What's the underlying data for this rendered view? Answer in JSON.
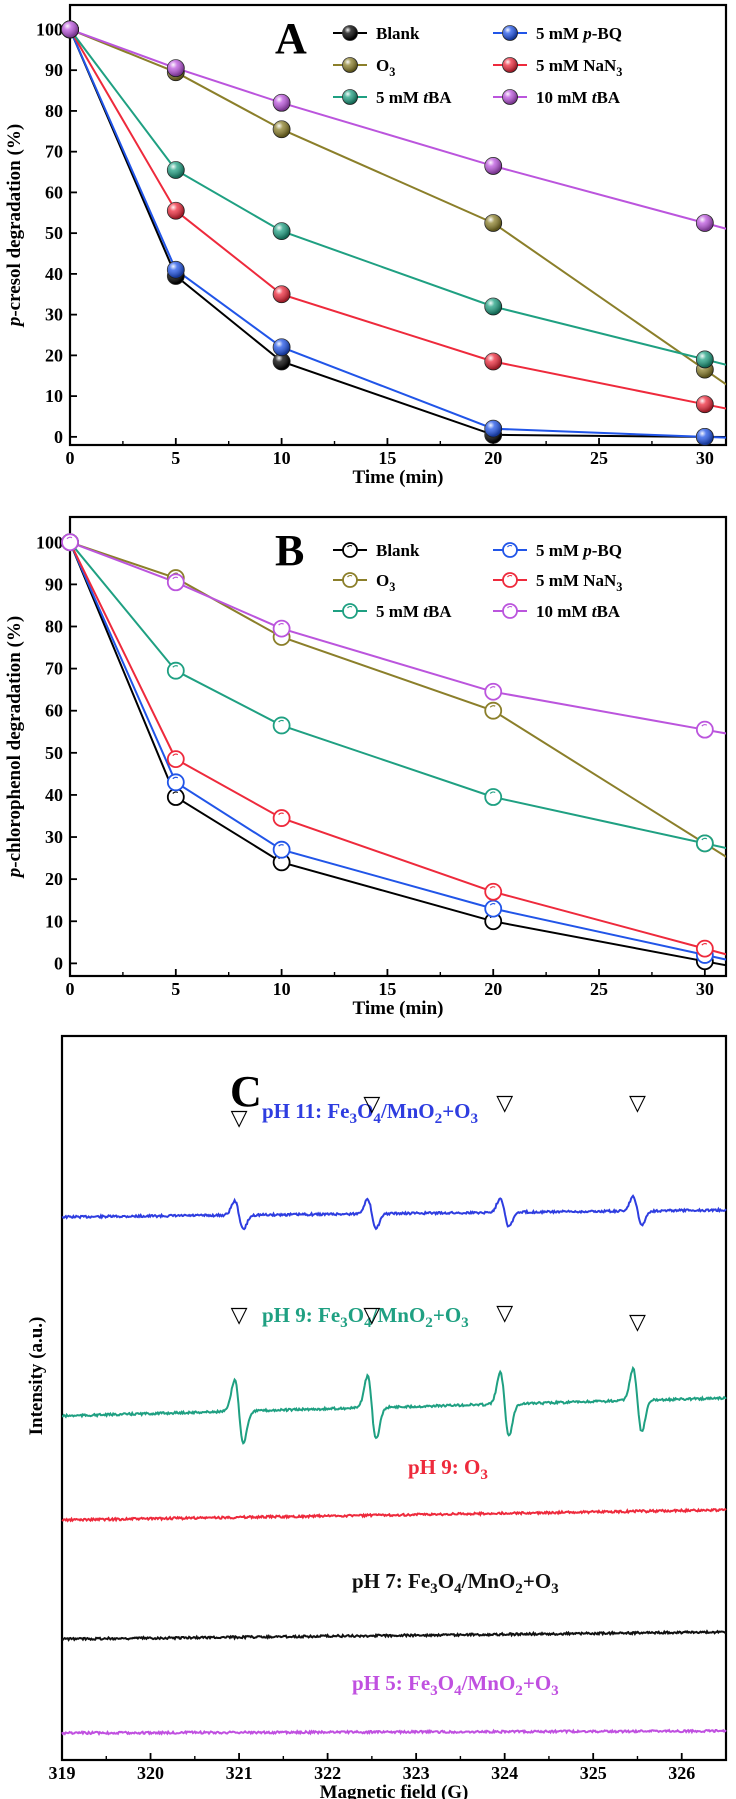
{
  "chart_data": [
    {
      "panel_label": "A",
      "type": "line",
      "marker_style": "filled",
      "xlabel_parts": [
        {
          "t": "Time (min)"
        }
      ],
      "ylabel_parts": [
        {
          "t": "p",
          "i": true
        },
        {
          "t": "-cresol degradation (%)"
        }
      ],
      "xlim": [
        0,
        31
      ],
      "ylim": [
        -2,
        106
      ],
      "xticks": [
        0,
        5,
        10,
        15,
        20,
        25,
        30
      ],
      "yticks": [
        0,
        10,
        20,
        30,
        40,
        50,
        60,
        70,
        80,
        90,
        100
      ],
      "x": [
        0,
        5,
        10,
        20,
        30
      ],
      "series": [
        {
          "key": "blank",
          "name_parts": [
            {
              "t": "Blank"
            }
          ],
          "color": "#000000",
          "values": [
            100,
            39.5,
            18.5,
            0.5,
            0
          ]
        },
        {
          "key": "pbq",
          "name_parts": [
            {
              "t": "5 mM "
            },
            {
              "t": "p",
              "i": true
            },
            {
              "t": "-BQ"
            }
          ],
          "color": "#2155e8",
          "values": [
            100,
            41,
            22,
            2,
            0
          ]
        },
        {
          "key": "o3",
          "name_parts": [
            {
              "t": "O"
            },
            {
              "t": "3",
              "sub": true
            }
          ],
          "color": "#8b7f2a",
          "values": [
            100,
            89.5,
            75.5,
            52.5,
            16.5
          ]
        },
        {
          "key": "nan3",
          "name_parts": [
            {
              "t": "5 mM NaN"
            },
            {
              "t": "3",
              "sub": true
            }
          ],
          "color": "#ee2a3c",
          "values": [
            100,
            55.5,
            35,
            18.5,
            8
          ]
        },
        {
          "key": "tba5",
          "name_parts": [
            {
              "t": "5 mM "
            },
            {
              "t": "t",
              "i": true
            },
            {
              "t": "BA"
            }
          ],
          "color": "#1fa082",
          "values": [
            100,
            65.5,
            50.5,
            32,
            19
          ]
        },
        {
          "key": "tba10",
          "name_parts": [
            {
              "t": "10 mM "
            },
            {
              "t": "t",
              "i": true
            },
            {
              "t": "BA"
            }
          ],
          "color": "#bb55dd",
          "values": [
            100,
            90.5,
            82,
            66.5,
            52.5
          ]
        }
      ],
      "legend": "top-right, two columns",
      "grid": false
    },
    {
      "panel_label": "B",
      "type": "line",
      "marker_style": "open",
      "xlabel_parts": [
        {
          "t": "Time (min)"
        }
      ],
      "ylabel_parts": [
        {
          "t": "p",
          "i": true
        },
        {
          "t": "-chlorophenol degradation (%)"
        }
      ],
      "xlim": [
        0,
        31
      ],
      "ylim": [
        -3,
        106
      ],
      "xticks": [
        0,
        5,
        10,
        15,
        20,
        25,
        30
      ],
      "yticks": [
        0,
        10,
        20,
        30,
        40,
        50,
        60,
        70,
        80,
        90,
        100
      ],
      "x": [
        0,
        5,
        10,
        20,
        30
      ],
      "series": [
        {
          "key": "blank",
          "name_parts": [
            {
              "t": "Blank"
            }
          ],
          "color": "#000000",
          "values": [
            100,
            39.5,
            24,
            10,
            0.5
          ]
        },
        {
          "key": "pbq",
          "name_parts": [
            {
              "t": "5 mM "
            },
            {
              "t": "p",
              "i": true
            },
            {
              "t": "-BQ"
            }
          ],
          "color": "#2155e8",
          "values": [
            100,
            43,
            27,
            13,
            2
          ]
        },
        {
          "key": "o3",
          "name_parts": [
            {
              "t": "O"
            },
            {
              "t": "3",
              "sub": true
            }
          ],
          "color": "#8b7f2a",
          "values": [
            100,
            91.5,
            77.5,
            60,
            28.5
          ]
        },
        {
          "key": "nan3",
          "name_parts": [
            {
              "t": "5 mM NaN"
            },
            {
              "t": "3",
              "sub": true
            }
          ],
          "color": "#ee2a3c",
          "values": [
            100,
            48.5,
            34.5,
            17,
            3.5
          ]
        },
        {
          "key": "tba5",
          "name_parts": [
            {
              "t": "5 mM "
            },
            {
              "t": "t",
              "i": true
            },
            {
              "t": "BA"
            }
          ],
          "color": "#1fa082",
          "values": [
            100,
            69.5,
            56.5,
            39.5,
            28.5
          ]
        },
        {
          "key": "tba10",
          "name_parts": [
            {
              "t": "10 mM "
            },
            {
              "t": "t",
              "i": true
            },
            {
              "t": "BA"
            }
          ],
          "color": "#bb55dd",
          "values": [
            100,
            90.5,
            79.5,
            64.5,
            55.5
          ]
        }
      ],
      "legend": "top-right, two columns",
      "grid": false
    },
    {
      "panel_label": "C",
      "type": "line",
      "xlabel_parts": [
        {
          "t": "Magnetic field (G)"
        }
      ],
      "ylabel_parts": [
        {
          "t": "Intensity (a.u.)"
        }
      ],
      "xlim": [
        319,
        326.5
      ],
      "xticks": [
        319,
        320,
        321,
        322,
        323,
        324,
        325,
        326
      ],
      "yticks": [],
      "peak_marker": "▽",
      "spectra": [
        {
          "key": "ph11",
          "name_parts": [
            {
              "t": "pH 11: Fe"
            },
            {
              "t": "3",
              "sub": true
            },
            {
              "t": "O"
            },
            {
              "t": "4",
              "sub": true
            },
            {
              "t": "/MnO"
            },
            {
              "t": "2",
              "sub": true
            },
            {
              "t": "+O"
            },
            {
              "t": "3",
              "sub": true
            }
          ],
          "color": "#2e3de0",
          "peaks_G": [
            321.0,
            322.5,
            324.0,
            325.5
          ],
          "amplitude": 0.45
        },
        {
          "key": "ph9cat",
          "name_parts": [
            {
              "t": "pH 9: Fe"
            },
            {
              "t": "3",
              "sub": true
            },
            {
              "t": "O"
            },
            {
              "t": "4",
              "sub": true
            },
            {
              "t": "/MnO"
            },
            {
              "t": "2",
              "sub": true
            },
            {
              "t": "+O"
            },
            {
              "t": "3",
              "sub": true
            }
          ],
          "color": "#1fa082",
          "peaks_G": [
            321.0,
            322.5,
            324.0,
            325.5
          ],
          "amplitude": 1.0
        },
        {
          "key": "ph9o3",
          "name_parts": [
            {
              "t": "pH 9: O"
            },
            {
              "t": "3",
              "sub": true
            }
          ],
          "color": "#ee2a3c",
          "peaks_G": [],
          "amplitude": 0.04
        },
        {
          "key": "ph7",
          "name_parts": [
            {
              "t": "pH 7: Fe"
            },
            {
              "t": "3",
              "sub": true
            },
            {
              "t": "O"
            },
            {
              "t": "4",
              "sub": true
            },
            {
              "t": "/MnO"
            },
            {
              "t": "2",
              "sub": true
            },
            {
              "t": "+O"
            },
            {
              "t": "3",
              "sub": true
            }
          ],
          "color": "#111111",
          "peaks_G": [],
          "amplitude": 0.04
        },
        {
          "key": "ph5",
          "name_parts": [
            {
              "t": "pH 5: Fe"
            },
            {
              "t": "3",
              "sub": true
            },
            {
              "t": "O"
            },
            {
              "t": "4",
              "sub": true
            },
            {
              "t": "/MnO"
            },
            {
              "t": "2",
              "sub": true
            },
            {
              "t": "+O"
            },
            {
              "t": "3",
              "sub": true
            }
          ],
          "color": "#c050e0",
          "peaks_G": [],
          "amplitude": 0.02
        }
      ],
      "grid": false
    }
  ]
}
